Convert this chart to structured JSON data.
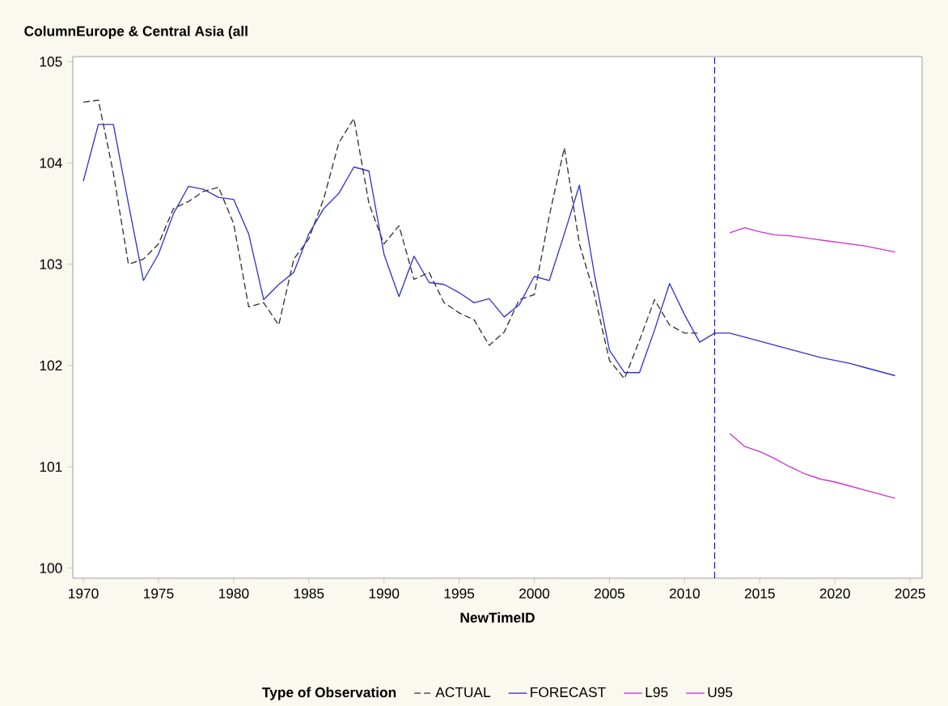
{
  "chart_data": {
    "type": "line",
    "title": "ColumnEurope & Central Asia (all",
    "xlabel": "NewTimeID",
    "legend_title": "Type of Observation",
    "legend": "bottom",
    "grid": false,
    "marker": "none",
    "xlim": [
      1969.3,
      2025.8
    ],
    "ylim": [
      99.9,
      105.05
    ],
    "xticks": [
      1970,
      1975,
      1980,
      1985,
      1990,
      1995,
      2000,
      2005,
      2010,
      2015,
      2020,
      2025
    ],
    "yticks": [
      100,
      101,
      102,
      103,
      104,
      105
    ],
    "ref_lines": [
      {
        "axis": "x",
        "value": 2012,
        "color": "#1a1acc",
        "line_style": "dashed"
      }
    ],
    "series": [
      {
        "name": "ACTUAL",
        "color": "#333333",
        "line_style": "dashed",
        "x": [
          1970,
          1971,
          1972,
          1973,
          1974,
          1975,
          1976,
          1977,
          1978,
          1979,
          1980,
          1981,
          1982,
          1983,
          1984,
          1985,
          1986,
          1987,
          1988,
          1989,
          1990,
          1991,
          1992,
          1993,
          1994,
          1995,
          1996,
          1997,
          1998,
          1999,
          2000,
          2001,
          2002,
          2003,
          2004,
          2005,
          2006,
          2007,
          2008,
          2009,
          2010,
          2011
        ],
        "values": [
          104.6,
          104.62,
          103.9,
          103.0,
          103.05,
          103.2,
          103.55,
          103.62,
          103.72,
          103.76,
          103.4,
          102.58,
          102.62,
          102.4,
          103.05,
          103.25,
          103.65,
          104.2,
          104.44,
          103.6,
          103.2,
          103.38,
          102.85,
          102.92,
          102.62,
          102.52,
          102.45,
          102.2,
          102.33,
          102.65,
          102.7,
          103.48,
          104.15,
          103.2,
          102.7,
          102.05,
          101.87,
          102.25,
          102.65,
          102.4,
          102.32,
          102.32
        ]
      },
      {
        "name": "FORECAST",
        "color": "#3333cc",
        "line_style": "solid",
        "x": [
          1970,
          1971,
          1972,
          1973,
          1974,
          1975,
          1976,
          1977,
          1978,
          1979,
          1980,
          1981,
          1982,
          1983,
          1984,
          1985,
          1986,
          1987,
          1988,
          1989,
          1990,
          1991,
          1992,
          1993,
          1994,
          1995,
          1996,
          1997,
          1998,
          1999,
          2000,
          2001,
          2002,
          2003,
          2004,
          2005,
          2006,
          2007,
          2008,
          2009,
          2010,
          2011,
          2012,
          2013,
          2014,
          2015,
          2016,
          2017,
          2018,
          2019,
          2020,
          2021,
          2022,
          2023,
          2024
        ],
        "values": [
          103.82,
          104.38,
          104.38,
          103.6,
          102.84,
          103.1,
          103.5,
          103.77,
          103.74,
          103.66,
          103.64,
          103.3,
          102.65,
          102.8,
          102.92,
          103.3,
          103.55,
          103.7,
          103.96,
          103.92,
          103.1,
          102.68,
          103.08,
          102.82,
          102.8,
          102.72,
          102.62,
          102.66,
          102.48,
          102.6,
          102.88,
          102.84,
          103.3,
          103.78,
          102.9,
          102.15,
          101.93,
          101.93,
          102.35,
          102.81,
          102.5,
          102.23,
          102.32,
          102.32,
          102.28,
          102.24,
          102.2,
          102.16,
          102.12,
          102.08,
          102.05,
          102.02,
          101.98,
          101.94,
          101.9
        ]
      },
      {
        "name": "L95",
        "color": "#cc33cc",
        "line_style": "solid",
        "x": [
          2013,
          2014,
          2015,
          2016,
          2017,
          2018,
          2019,
          2020,
          2021,
          2022,
          2023,
          2024
        ],
        "values": [
          101.33,
          101.2,
          101.15,
          101.08,
          101.0,
          100.93,
          100.88,
          100.85,
          100.81,
          100.77,
          100.73,
          100.69
        ]
      },
      {
        "name": "U95",
        "color": "#cc33cc",
        "line_style": "solid",
        "x": [
          2013,
          2014,
          2015,
          2016,
          2017,
          2018,
          2019,
          2020,
          2021,
          2022,
          2023,
          2024
        ],
        "values": [
          103.31,
          103.36,
          103.32,
          103.29,
          103.28,
          103.26,
          103.24,
          103.22,
          103.2,
          103.18,
          103.15,
          103.12
        ]
      }
    ]
  }
}
